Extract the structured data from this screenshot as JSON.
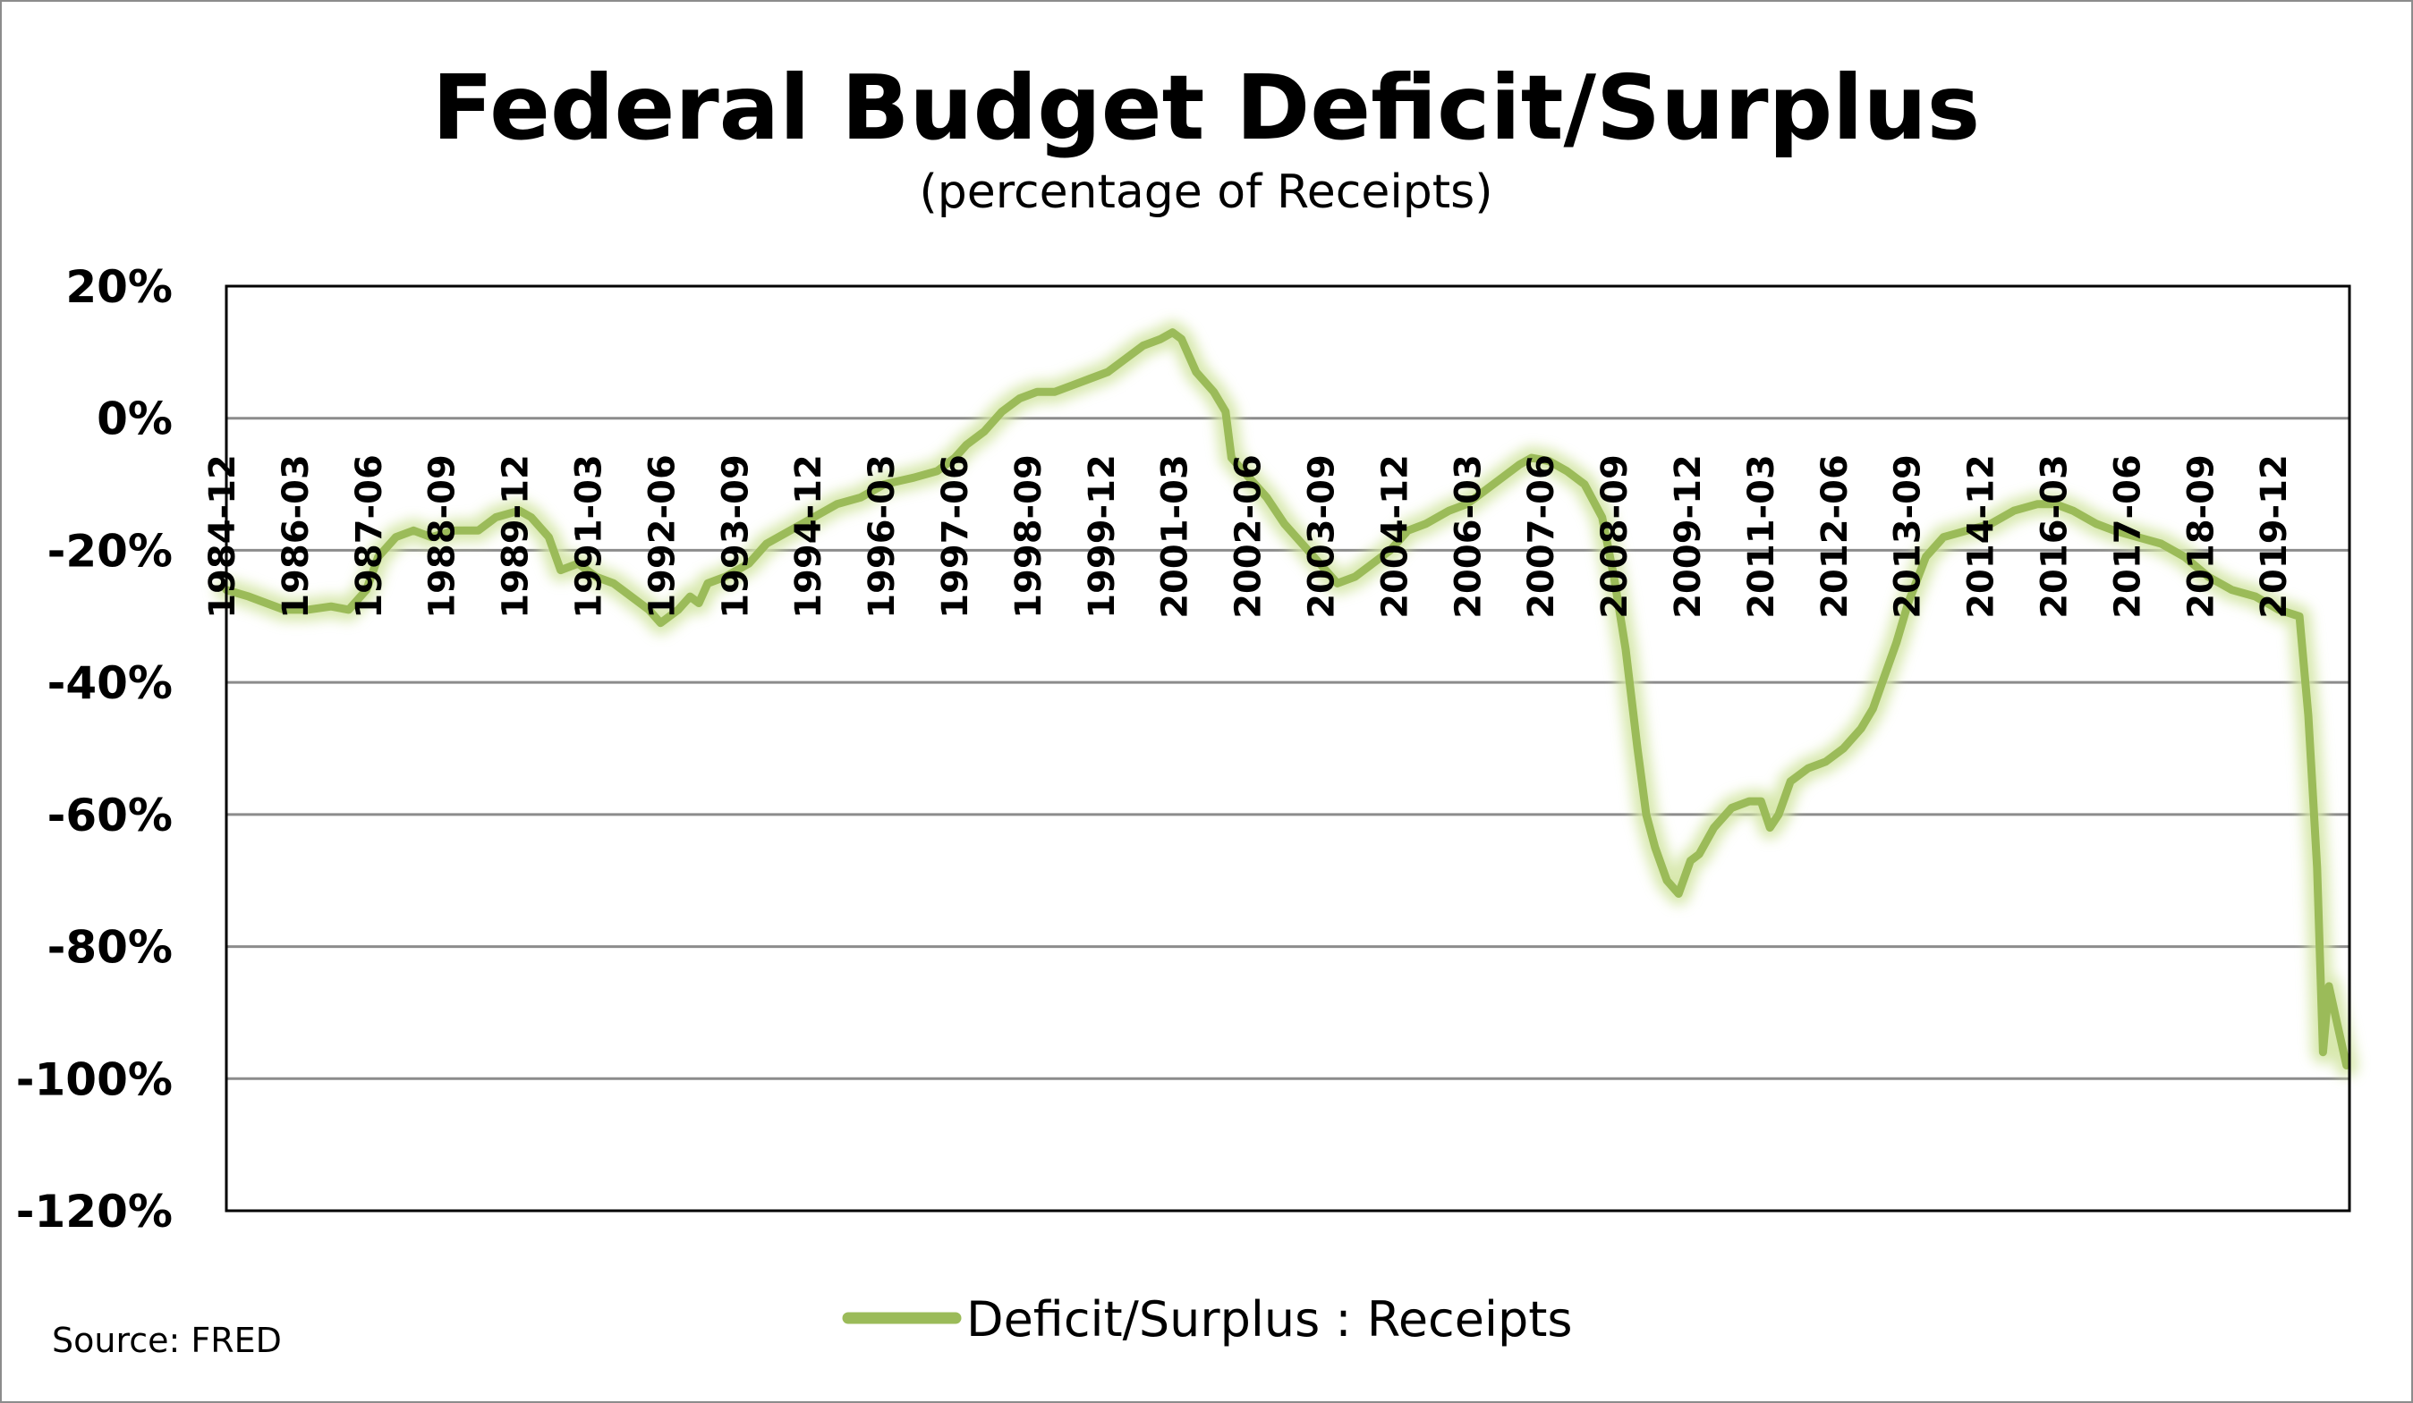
{
  "chart_data": {
    "type": "line",
    "title": "Federal Budget Deficit/Surplus",
    "subtitle": "(percentage of Receipts)",
    "source": "Source: FRED",
    "xlabel": "",
    "ylabel": "",
    "ylim": [
      -120,
      20
    ],
    "yticks": [
      20,
      0,
      -20,
      -40,
      -60,
      -80,
      -100,
      -120
    ],
    "ytick_labels": [
      "20%",
      "0%",
      "-20%",
      "-40%",
      "-60%",
      "-80%",
      "-100%",
      "-120%"
    ],
    "x_range": [
      1984.92,
      2021.0
    ],
    "xtick_labels": [
      "1984-12",
      "1986-03",
      "1987-06",
      "1988-09",
      "1989-12",
      "1991-03",
      "1992-06",
      "1993-09",
      "1994-12",
      "1996-03",
      "1997-06",
      "1998-09",
      "1999-12",
      "2001-03",
      "2002-06",
      "2003-09",
      "2004-12",
      "2006-03",
      "2007-06",
      "2008-09",
      "2009-12",
      "2011-03",
      "2012-06",
      "2013-09",
      "2014-12",
      "2016-03",
      "2017-06",
      "2018-09",
      "2019-12"
    ],
    "grid": true,
    "legend_position": "bottom",
    "series": [
      {
        "name": "Deficit/Surplus : Receipts",
        "color": "#9bbb59",
        "points": [
          [
            1984.92,
            -26
          ],
          [
            1985.3,
            -27
          ],
          [
            1985.6,
            -28
          ],
          [
            1985.9,
            -29
          ],
          [
            1986.3,
            -29
          ],
          [
            1986.7,
            -28.5
          ],
          [
            1987.0,
            -29
          ],
          [
            1987.3,
            -26
          ],
          [
            1987.5,
            -21
          ],
          [
            1987.8,
            -18
          ],
          [
            1988.1,
            -17
          ],
          [
            1988.4,
            -18
          ],
          [
            1988.8,
            -17
          ],
          [
            1989.2,
            -17
          ],
          [
            1989.5,
            -15
          ],
          [
            1989.9,
            -14
          ],
          [
            1990.1,
            -15
          ],
          [
            1990.4,
            -18
          ],
          [
            1990.6,
            -23
          ],
          [
            1990.9,
            -22
          ],
          [
            1991.2,
            -24
          ],
          [
            1991.5,
            -25
          ],
          [
            1991.8,
            -27
          ],
          [
            1992.1,
            -29
          ],
          [
            1992.3,
            -31
          ],
          [
            1992.6,
            -29
          ],
          [
            1992.8,
            -27
          ],
          [
            1992.95,
            -28
          ],
          [
            1993.1,
            -25
          ],
          [
            1993.4,
            -24
          ],
          [
            1993.8,
            -22
          ],
          [
            1994.1,
            -19
          ],
          [
            1994.5,
            -17
          ],
          [
            1994.9,
            -15
          ],
          [
            1995.3,
            -13
          ],
          [
            1995.7,
            -12
          ],
          [
            1996.1,
            -10
          ],
          [
            1996.6,
            -9
          ],
          [
            1997.0,
            -8
          ],
          [
            1997.3,
            -6
          ],
          [
            1997.5,
            -4
          ],
          [
            1997.8,
            -2
          ],
          [
            1998.1,
            1
          ],
          [
            1998.4,
            3
          ],
          [
            1998.7,
            4
          ],
          [
            1999.0,
            4
          ],
          [
            1999.3,
            5
          ],
          [
            1999.6,
            6
          ],
          [
            1999.9,
            7
          ],
          [
            2000.2,
            9
          ],
          [
            2000.5,
            11
          ],
          [
            2000.8,
            12
          ],
          [
            2001.0,
            13
          ],
          [
            2001.15,
            12
          ],
          [
            2001.4,
            7
          ],
          [
            2001.7,
            4
          ],
          [
            2001.9,
            1
          ],
          [
            2002.0,
            -6
          ],
          [
            2002.3,
            -9
          ],
          [
            2002.6,
            -12
          ],
          [
            2002.9,
            -16
          ],
          [
            2003.2,
            -19
          ],
          [
            2003.5,
            -22
          ],
          [
            2003.8,
            -25
          ],
          [
            2004.1,
            -24
          ],
          [
            2004.4,
            -22
          ],
          [
            2004.7,
            -20
          ],
          [
            2005.0,
            -17
          ],
          [
            2005.3,
            -16
          ],
          [
            2005.7,
            -14
          ],
          [
            2006.0,
            -13
          ],
          [
            2006.3,
            -11
          ],
          [
            2006.6,
            -9
          ],
          [
            2006.9,
            -7
          ],
          [
            2007.1,
            -6
          ],
          [
            2007.4,
            -6.5
          ],
          [
            2007.7,
            -8
          ],
          [
            2008.0,
            -10
          ],
          [
            2008.3,
            -15
          ],
          [
            2008.5,
            -24
          ],
          [
            2008.7,
            -35
          ],
          [
            2008.9,
            -50
          ],
          [
            2009.05,
            -60
          ],
          [
            2009.2,
            -65
          ],
          [
            2009.4,
            -70
          ],
          [
            2009.6,
            -72
          ],
          [
            2009.8,
            -67
          ],
          [
            2009.95,
            -66
          ],
          [
            2010.2,
            -62
          ],
          [
            2010.5,
            -59
          ],
          [
            2010.8,
            -58
          ],
          [
            2011.0,
            -58
          ],
          [
            2011.15,
            -62
          ],
          [
            2011.3,
            -60
          ],
          [
            2011.5,
            -55
          ],
          [
            2011.8,
            -53
          ],
          [
            2012.1,
            -52
          ],
          [
            2012.4,
            -50
          ],
          [
            2012.7,
            -47
          ],
          [
            2012.9,
            -44
          ],
          [
            2013.1,
            -39
          ],
          [
            2013.3,
            -34
          ],
          [
            2013.5,
            -28
          ],
          [
            2013.8,
            -21
          ],
          [
            2014.1,
            -18
          ],
          [
            2014.5,
            -17
          ],
          [
            2014.9,
            -16
          ],
          [
            2015.3,
            -14
          ],
          [
            2015.7,
            -13
          ],
          [
            2016.0,
            -13
          ],
          [
            2016.3,
            -14
          ],
          [
            2016.7,
            -16
          ],
          [
            2017.0,
            -17
          ],
          [
            2017.4,
            -18
          ],
          [
            2017.8,
            -19
          ],
          [
            2018.2,
            -21
          ],
          [
            2018.6,
            -24
          ],
          [
            2019.0,
            -26
          ],
          [
            2019.4,
            -27
          ],
          [
            2019.8,
            -29
          ],
          [
            2020.15,
            -30
          ],
          [
            2020.3,
            -45
          ],
          [
            2020.45,
            -68
          ],
          [
            2020.55,
            -96
          ],
          [
            2020.65,
            -86
          ],
          [
            2020.8,
            -92
          ],
          [
            2020.95,
            -98
          ]
        ]
      }
    ]
  },
  "ui": {
    "title": "Federal Budget Deficit/Surplus",
    "subtitle": "(percentage of Receipts)",
    "legend_label": "Deficit/Surplus : Receipts",
    "source": "Source: FRED"
  }
}
